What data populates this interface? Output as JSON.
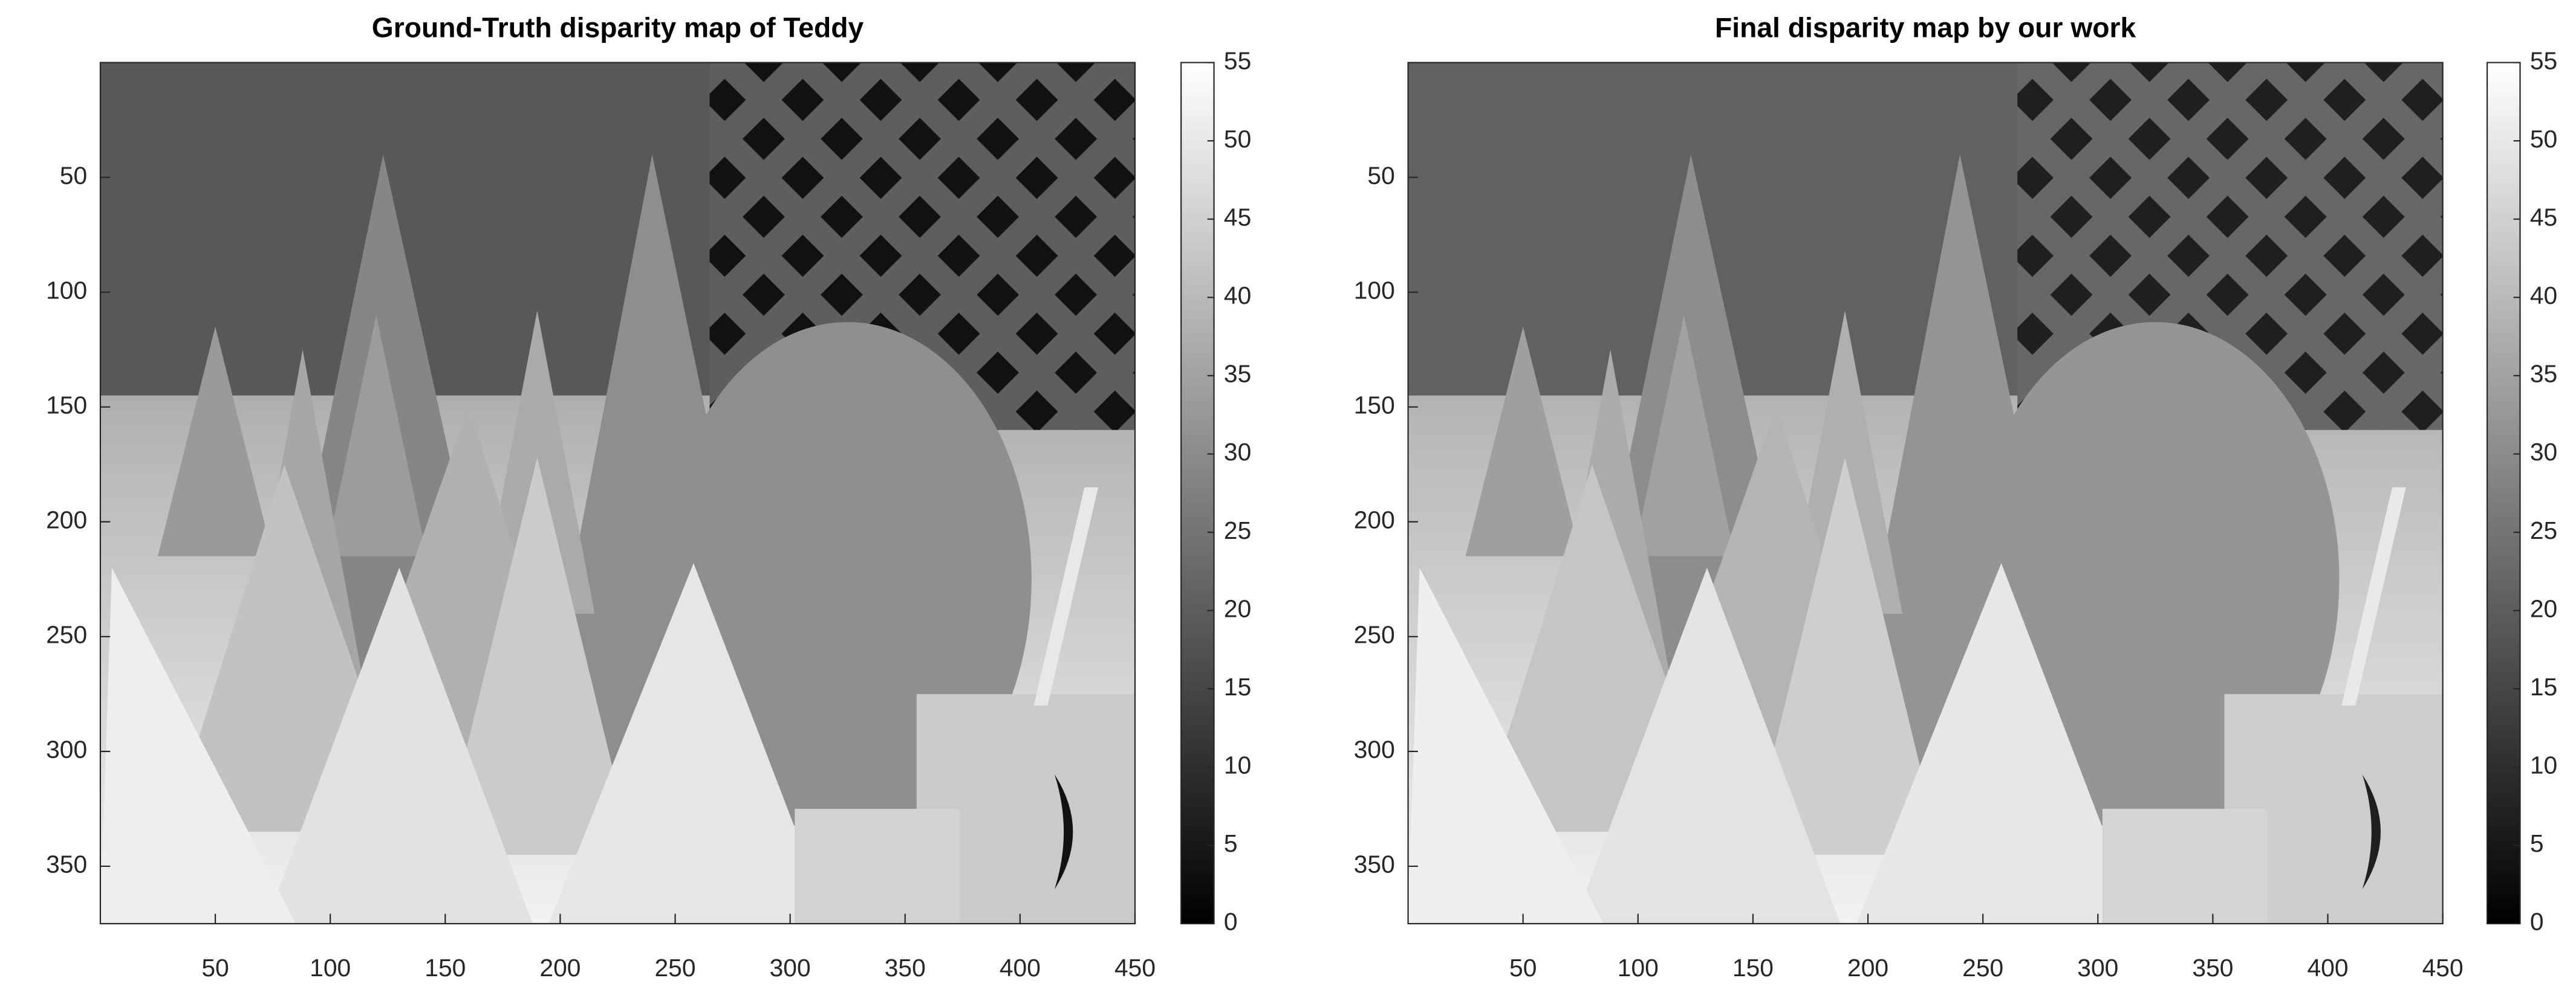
{
  "chart_data": [
    {
      "type": "image",
      "title": "Ground-Truth disparity map of Teddy",
      "colormap": "gray",
      "y_reversed": true,
      "xlim": [
        0,
        450
      ],
      "ylim": [
        0,
        375
      ],
      "xticks": [
        50,
        100,
        150,
        200,
        250,
        300,
        350,
        400,
        450
      ],
      "yticks": [
        50,
        100,
        150,
        200,
        250,
        300,
        350
      ],
      "colorbar": {
        "lim": [
          0,
          55
        ],
        "ticks": [
          0,
          5,
          10,
          15,
          20,
          25,
          30,
          35,
          40,
          45,
          50,
          55
        ]
      }
    },
    {
      "type": "image",
      "title": "Final disparity map by our work",
      "colormap": "gray",
      "y_reversed": true,
      "xlim": [
        0,
        450
      ],
      "ylim": [
        0,
        375
      ],
      "xticks": [
        50,
        100,
        150,
        200,
        250,
        300,
        350,
        400,
        450
      ],
      "yticks": [
        50,
        100,
        150,
        200,
        250,
        300,
        350
      ],
      "colorbar": {
        "lim": [
          0,
          55
        ],
        "ticks": [
          0,
          5,
          10,
          15,
          20,
          25,
          30,
          35,
          40,
          45,
          50,
          55
        ]
      }
    }
  ]
}
